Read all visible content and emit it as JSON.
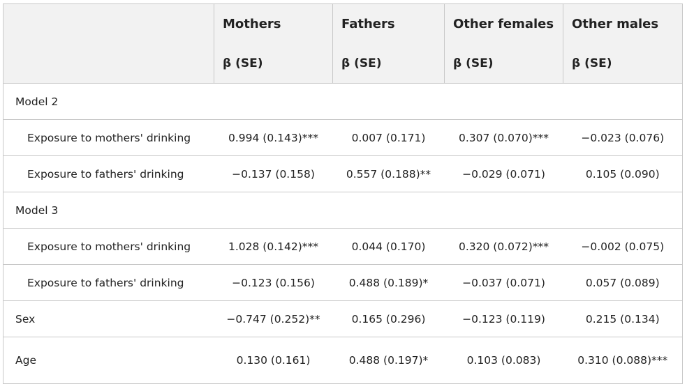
{
  "header": {
    "columns": [
      {
        "name": "",
        "stat": ""
      },
      {
        "name": "Mothers",
        "stat": "β (SE)"
      },
      {
        "name": "Fathers",
        "stat": "β (SE)"
      },
      {
        "name": "Other females",
        "stat": "β (SE)"
      },
      {
        "name": "Other males",
        "stat": "β (SE)"
      }
    ]
  },
  "rows": [
    {
      "label": "Model 2",
      "values": [
        "",
        "",
        "",
        ""
      ]
    },
    {
      "label": "Exposure to mothers' drinking",
      "values": [
        "0.994 (0.143)***",
        "0.007 (0.171)",
        "0.307 (0.070)***",
        "−0.023 (0.076)"
      ]
    },
    {
      "label": "Exposure to fathers' drinking",
      "values": [
        "−0.137 (0.158)",
        "0.557 (0.188)**",
        "−0.029 (0.071)",
        "0.105 (0.090)"
      ]
    },
    {
      "label": "Model 3",
      "values": [
        "",
        "",
        "",
        ""
      ]
    },
    {
      "label": "Exposure to mothers' drinking",
      "values": [
        "1.028 (0.142)***",
        "0.044 (0.170)",
        "0.320 (0.072)***",
        "−0.002 (0.075)"
      ]
    },
    {
      "label": "Exposure to fathers' drinking",
      "values": [
        "−0.123 (0.156)",
        "0.488 (0.189)*",
        "−0.037 (0.071)",
        "0.057 (0.089)"
      ]
    },
    {
      "label": "Sex",
      "values": [
        "−0.747 (0.252)**",
        "0.165 (0.296)",
        "−0.123 (0.119)",
        "0.215 (0.134)"
      ]
    },
    {
      "label": "Age",
      "values": [
        "0.130 (0.161)",
        "0.488 (0.197)*",
        "0.103 (0.083)",
        "0.310 (0.088)***"
      ]
    }
  ]
}
